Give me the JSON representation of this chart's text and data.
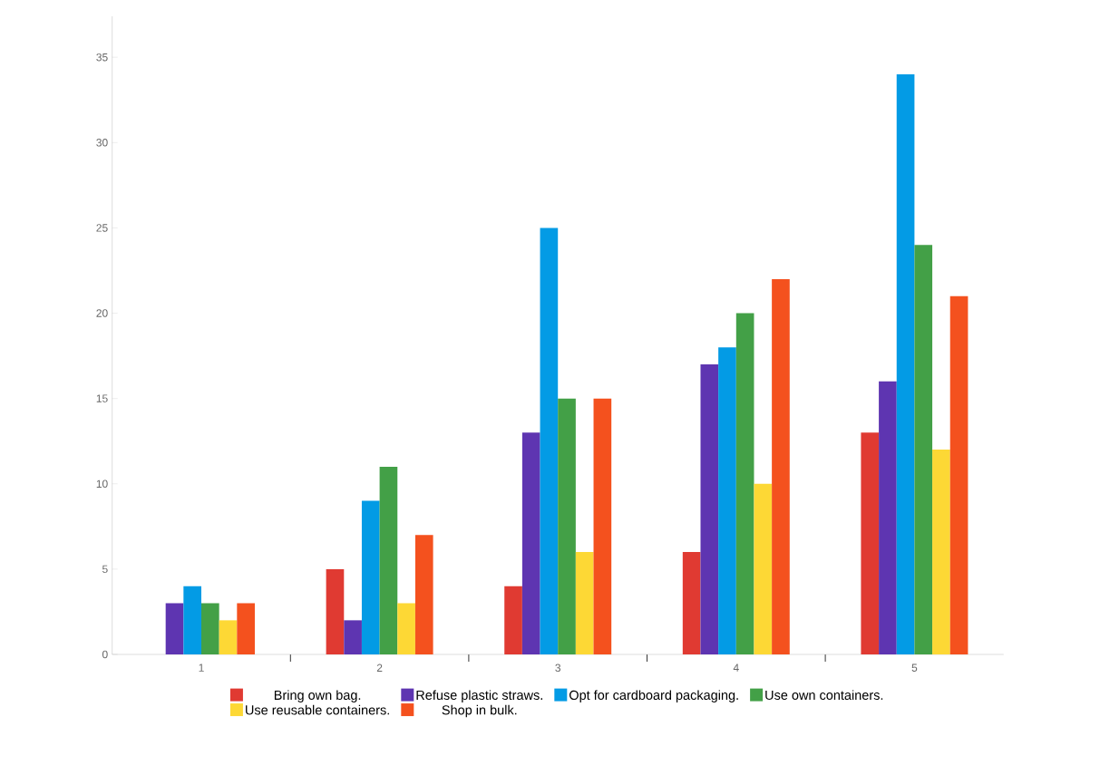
{
  "chart_data": {
    "type": "bar",
    "categories": [
      "1",
      "2",
      "3",
      "4",
      "5"
    ],
    "series": [
      {
        "name": "Bring own bag.",
        "color": "#e03a32",
        "values": [
          0,
          5,
          4,
          6,
          13
        ]
      },
      {
        "name": "Refuse plastic straws.",
        "color": "#5e35b1",
        "values": [
          3,
          2,
          13,
          17,
          16
        ]
      },
      {
        "name": "Opt for cardboard packaging.",
        "color": "#039be5",
        "values": [
          4,
          9,
          25,
          18,
          34
        ]
      },
      {
        "name": "Use own containers.",
        "color": "#43a047",
        "values": [
          3,
          11,
          15,
          20,
          24
        ]
      },
      {
        "name": "Use reusable containers.",
        "color": "#fdd835",
        "values": [
          2,
          3,
          6,
          10,
          12
        ]
      },
      {
        "name": "Shop in bulk.",
        "color": "#f4511e",
        "values": [
          3,
          7,
          15,
          22,
          21
        ]
      }
    ],
    "ylim": [
      0,
      37.4
    ],
    "yticks": [
      0,
      5,
      10,
      15,
      20,
      25,
      30,
      35
    ],
    "grid": false,
    "legend": "bottom"
  }
}
